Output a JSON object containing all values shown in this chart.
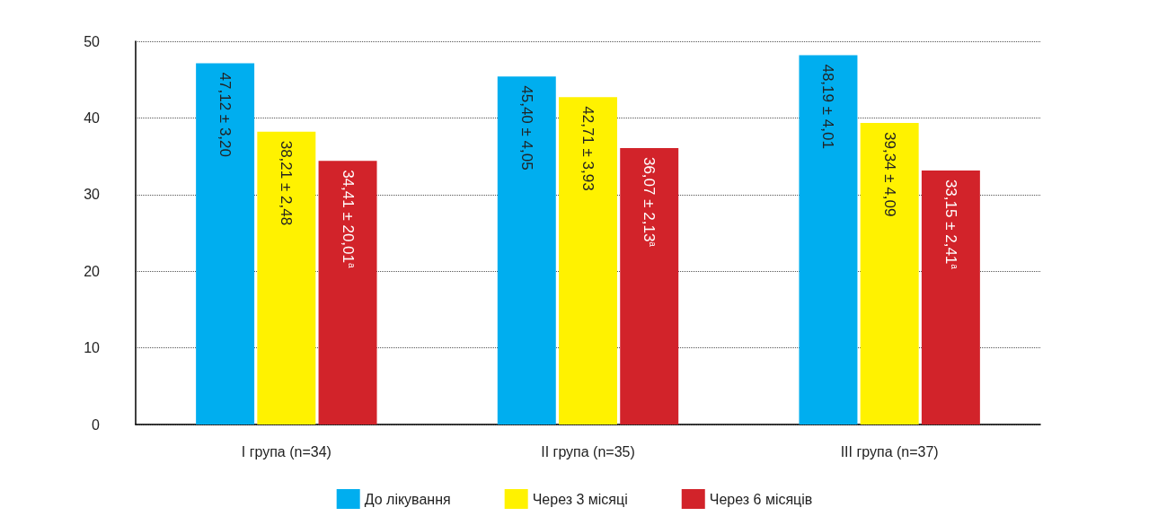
{
  "chart_data": {
    "type": "bar",
    "categories": [
      "I група (n=34)",
      "II група (n=35)",
      "III група (n=37)"
    ],
    "series": [
      {
        "name": "До лікування",
        "color": "#00aeef",
        "values": [
          47.12,
          45.4,
          48.19
        ],
        "value_labels": [
          "47,12 ± 3,20",
          "45,40 ± 4,05",
          "48,19 ± 4,01"
        ]
      },
      {
        "name": "Через 3 місяці",
        "color": "#fff200",
        "values": [
          38.21,
          42.71,
          39.34
        ],
        "value_labels": [
          "38,21 ± 2,48",
          "42,71 ± 3,93",
          "39,34 ± 4,09"
        ]
      },
      {
        "name": "Через 6 місяців",
        "color": "#d2232a",
        "values": [
          34.41,
          36.07,
          33.15
        ],
        "value_labels": [
          "34,41 ± 20,01$^{а}$",
          "36,07 ± 2,13$^{а}$",
          "33,15 ± 2,41$^{а}$"
        ]
      }
    ],
    "ylim": [
      0,
      50
    ],
    "yticks": [
      0,
      10,
      20,
      30,
      40,
      50
    ],
    "grid": "y",
    "legend": "bottom"
  }
}
